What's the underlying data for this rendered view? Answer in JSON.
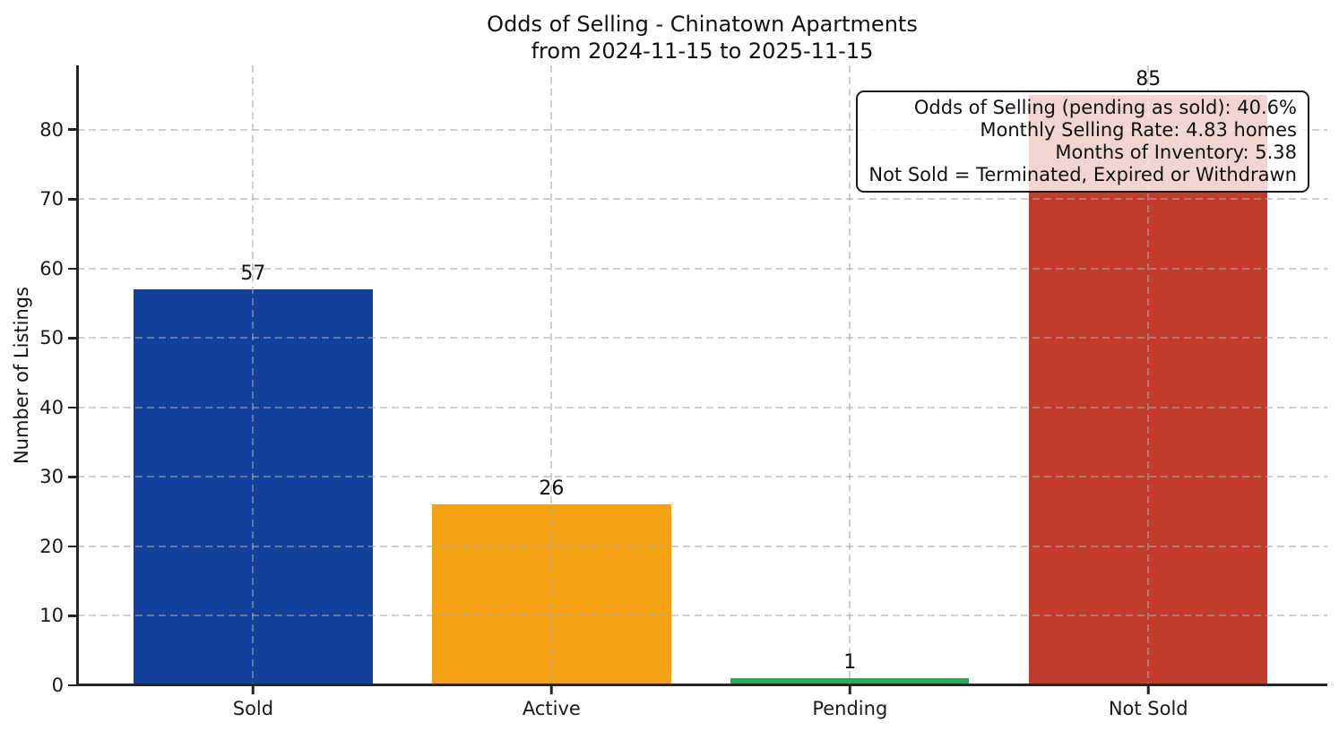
{
  "title": {
    "line1": "Odds of Selling - Chinatown Apartments",
    "line2": "from 2024-11-15 to 2025-11-15"
  },
  "chart_data": {
    "type": "bar",
    "title": "Odds of Selling - Chinatown Apartments\nfrom 2024-11-15 to 2025-11-15",
    "categories": [
      "Sold",
      "Active",
      "Pending",
      "Not Sold"
    ],
    "values": [
      57,
      26,
      1,
      85
    ],
    "value_labels": [
      "57",
      "26",
      "1",
      "85"
    ],
    "bar_colors": [
      "#12409a",
      "#f4a213",
      "#2ca85f",
      "#c23b2c"
    ],
    "xlabel": "",
    "ylabel": "Number of Listings",
    "ylim": [
      0,
      89.25
    ],
    "xlim": [
      -0.59,
      3.6
    ],
    "bar_width": 0.8,
    "yticks": [
      0,
      10,
      20,
      30,
      40,
      50,
      60,
      70,
      80
    ],
    "grid": "dashed gridlines on both axes, drawn above bars",
    "legend": "none"
  },
  "annotation": {
    "lines": [
      "Odds of Selling (pending as sold): 40.6%",
      "Monthly Selling Rate: 4.83 homes",
      "Months of Inventory: 5.38",
      "Not Sold = Terminated, Expired or Withdrawn"
    ]
  },
  "colors": {
    "background": "#ffffff",
    "spine": "#262626",
    "grid": "#a8a8a8",
    "text": "#1a1a1a",
    "annotation_border": "#1a1a1a",
    "annotation_background": "rgba(255,255,255,0.78)"
  }
}
